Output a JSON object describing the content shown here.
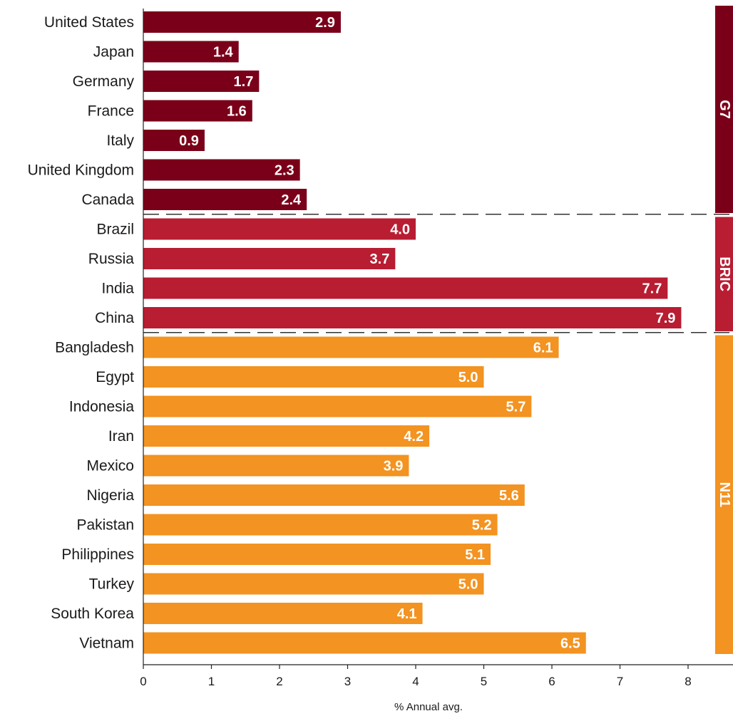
{
  "chart_data": {
    "type": "bar",
    "orientation": "horizontal",
    "xlabel": "% Annual avg.",
    "xlim": [
      0,
      8
    ],
    "xticks": [
      0,
      1,
      2,
      3,
      4,
      5,
      6,
      7,
      8
    ],
    "grid": false,
    "categories": [
      "United States",
      "Japan",
      "Germany",
      "France",
      "Italy",
      "United Kingdom",
      "Canada",
      "Brazil",
      "Russia",
      "India",
      "China",
      "Bangladesh",
      "Egypt",
      "Indonesia",
      "Iran",
      "Mexico",
      "Nigeria",
      "Pakistan",
      "Philippines",
      "Turkey",
      "South Korea",
      "Vietnam"
    ],
    "values": [
      2.9,
      1.4,
      1.7,
      1.6,
      0.9,
      2.3,
      2.4,
      4.0,
      3.7,
      7.7,
      7.9,
      6.1,
      5.0,
      5.7,
      4.2,
      3.9,
      5.6,
      5.2,
      5.1,
      5.0,
      4.1,
      6.5
    ],
    "value_labels": [
      "2.9",
      "1.4",
      "1.7",
      "1.6",
      "0.9",
      "2.3",
      "2.4",
      "4.0",
      "3.7",
      "7.7",
      "7.9",
      "6.1",
      "5.0",
      "5.7",
      "4.2",
      "3.9",
      "5.6",
      "5.2",
      "5.1",
      "5.0",
      "4.1",
      "6.5"
    ],
    "groups": [
      {
        "name": "G7",
        "start": 0,
        "end": 6,
        "color": "#7a0019"
      },
      {
        "name": "BRIC",
        "start": 7,
        "end": 10,
        "color": "#b81d32"
      },
      {
        "name": "N11",
        "start": 11,
        "end": 21,
        "color": "#f39321"
      }
    ]
  }
}
